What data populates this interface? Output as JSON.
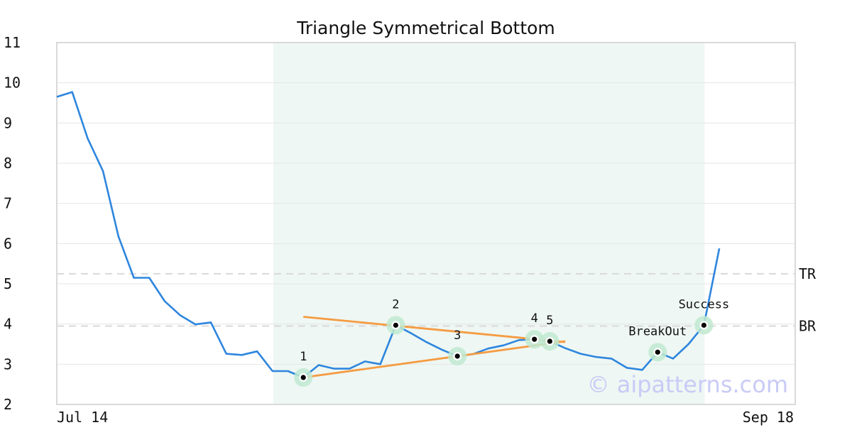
{
  "chart_data": {
    "type": "line",
    "title": "Triangle Symmetrical Bottom",
    "xlabel": "",
    "ylabel": "",
    "ylim": [
      2,
      11
    ],
    "yticks": [
      "2",
      "3",
      "4",
      "5",
      "6",
      "7",
      "8",
      "9",
      "10",
      "11"
    ],
    "x_tick_labels": [
      "Jul 14",
      "Sep 18"
    ],
    "grid": true,
    "series": [
      {
        "color": "#2e86de",
        "values": [
          9.65,
          9.77,
          8.62,
          7.8,
          6.18,
          5.15,
          5.15,
          4.57,
          4.22,
          3.99,
          4.04,
          3.26,
          3.23,
          3.32,
          2.83,
          2.83,
          2.67,
          2.98,
          2.89,
          2.89,
          3.07,
          3.0,
          3.97,
          3.77,
          3.55,
          3.36,
          3.2,
          3.25,
          3.39,
          3.47,
          3.6,
          3.62,
          3.57,
          3.4,
          3.26,
          3.18,
          3.14,
          2.91,
          2.86,
          3.3,
          3.14,
          3.5,
          3.97,
          5.88
        ]
      }
    ],
    "highlight_range": {
      "from": 14,
      "to": 42,
      "color": "#eef7f3"
    },
    "levels": [
      {
        "label": "TR",
        "y": 5.25
      },
      {
        "label": "BR",
        "y": 3.95
      }
    ],
    "trendlines": [
      {
        "from": [
          16,
          4.18
        ],
        "to": [
          33,
          3.55
        ],
        "color": "#f59b42"
      },
      {
        "from": [
          16,
          2.67
        ],
        "to": [
          33,
          3.57
        ],
        "color": "#f59b42"
      }
    ],
    "points": [
      {
        "label": "1",
        "x": 16,
        "y": 2.67
      },
      {
        "label": "2",
        "x": 22,
        "y": 3.97
      },
      {
        "label": "3",
        "x": 26,
        "y": 3.2
      },
      {
        "label": "4",
        "x": 31,
        "y": 3.62
      },
      {
        "label": "5",
        "x": 32,
        "y": 3.57
      },
      {
        "label": "BreakOut",
        "x": 39,
        "y": 3.3
      },
      {
        "label": "Success",
        "x": 42,
        "y": 3.97
      }
    ],
    "watermark": "© aipatterns.com"
  }
}
